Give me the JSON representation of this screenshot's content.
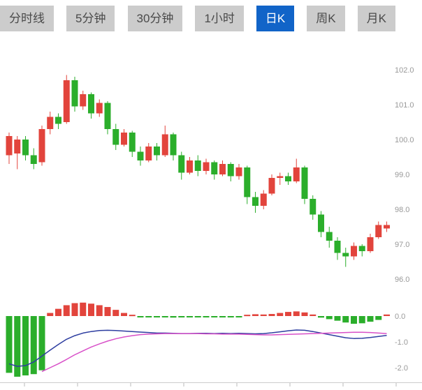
{
  "tabs": [
    {
      "label": "分时线",
      "active": false
    },
    {
      "label": "5分钟",
      "active": false
    },
    {
      "label": "30分钟",
      "active": false
    },
    {
      "label": "1小时",
      "active": false
    },
    {
      "label": "日K",
      "active": true
    },
    {
      "label": "周K",
      "active": false
    },
    {
      "label": "月K",
      "active": false
    }
  ],
  "colors": {
    "up": "#e2443c",
    "down": "#2bae2b",
    "dif_line": "#2d3da0",
    "dea_line": "#d850c8",
    "tab_active_bg": "#1164c8",
    "tab_bg": "#cccccc",
    "axis_text": "#999999",
    "axis_line": "#cccccc"
  },
  "chart_data": [
    {
      "type": "candlestick",
      "title": "日K",
      "y_axis": {
        "ticks": [
          102.0,
          101.0,
          100.0,
          99.0,
          98.0,
          97.0,
          96.0
        ],
        "ylim": [
          96.0,
          102.8
        ],
        "position": "right",
        "grid": false
      },
      "ohlc_order": "[open, high, low, close]",
      "candles": [
        [
          99.55,
          100.2,
          99.3,
          100.1
        ],
        [
          99.6,
          100.1,
          99.15,
          100.0
        ],
        [
          100.0,
          100.1,
          99.4,
          99.55
        ],
        [
          99.55,
          99.75,
          99.15,
          99.3
        ],
        [
          99.35,
          100.4,
          99.25,
          100.3
        ],
        [
          100.3,
          100.8,
          100.15,
          100.65
        ],
        [
          100.65,
          100.75,
          100.3,
          100.45
        ],
        [
          100.5,
          101.85,
          100.45,
          101.7
        ],
        [
          101.7,
          101.8,
          100.8,
          100.95
        ],
        [
          100.95,
          101.4,
          100.85,
          101.3
        ],
        [
          101.3,
          101.35,
          100.6,
          100.75
        ],
        [
          100.75,
          101.15,
          100.65,
          101.05
        ],
        [
          101.05,
          101.1,
          100.15,
          100.3
        ],
        [
          100.3,
          100.45,
          99.7,
          99.85
        ],
        [
          99.85,
          100.3,
          99.8,
          100.2
        ],
        [
          100.2,
          100.25,
          99.5,
          99.65
        ],
        [
          99.65,
          99.8,
          99.25,
          99.4
        ],
        [
          99.4,
          99.9,
          99.35,
          99.8
        ],
        [
          99.8,
          99.9,
          99.4,
          99.55
        ],
        [
          99.55,
          100.4,
          99.5,
          100.15
        ],
        [
          100.15,
          100.2,
          99.4,
          99.55
        ],
        [
          99.55,
          99.65,
          98.85,
          99.05
        ],
        [
          99.05,
          99.5,
          99.0,
          99.4
        ],
        [
          99.4,
          99.55,
          98.95,
          99.1
        ],
        [
          99.1,
          99.45,
          99.0,
          99.35
        ],
        [
          99.35,
          99.4,
          98.85,
          99.0
        ],
        [
          99.0,
          99.4,
          98.95,
          99.3
        ],
        [
          99.3,
          99.35,
          98.8,
          98.95
        ],
        [
          98.95,
          99.3,
          98.85,
          99.2
        ],
        [
          99.2,
          99.25,
          98.15,
          98.35
        ],
        [
          98.35,
          98.5,
          97.9,
          98.1
        ],
        [
          98.1,
          98.55,
          98.0,
          98.45
        ],
        [
          98.45,
          99.0,
          98.4,
          98.9
        ],
        [
          98.9,
          99.05,
          98.7,
          98.95
        ],
        [
          98.95,
          99.05,
          98.7,
          98.8
        ],
        [
          98.8,
          99.45,
          98.75,
          99.2
        ],
        [
          99.2,
          99.25,
          98.15,
          98.3
        ],
        [
          98.3,
          98.4,
          97.7,
          97.85
        ],
        [
          97.85,
          97.95,
          97.2,
          97.35
        ],
        [
          97.35,
          97.5,
          96.9,
          97.1
        ],
        [
          97.1,
          97.2,
          96.55,
          96.75
        ],
        [
          96.75,
          96.9,
          96.35,
          96.65
        ],
        [
          96.65,
          97.05,
          96.55,
          96.95
        ],
        [
          96.95,
          97.0,
          96.65,
          96.8
        ],
        [
          96.8,
          97.3,
          96.75,
          97.2
        ],
        [
          97.2,
          97.65,
          97.15,
          97.55
        ],
        [
          97.45,
          97.65,
          97.35,
          97.55
        ]
      ]
    },
    {
      "type": "bar",
      "subtype": "macd",
      "y_axis": {
        "ticks": [
          0.0,
          -1.0,
          -2.0
        ],
        "ylim": [
          -2.6,
          0.7
        ],
        "position": "right",
        "grid": false
      },
      "histogram": [
        -2.2,
        -2.35,
        -2.3,
        -2.25,
        -2.1,
        0.12,
        0.28,
        0.42,
        0.5,
        0.52,
        0.48,
        0.42,
        0.35,
        0.24,
        0.12,
        0.05,
        -0.03,
        -0.05,
        -0.04,
        -0.05,
        -0.06,
        -0.05,
        -0.04,
        -0.05,
        -0.04,
        -0.03,
        -0.05,
        -0.04,
        -0.05,
        0.05,
        0.07,
        0.06,
        0.08,
        0.12,
        0.16,
        0.18,
        0.14,
        0.06,
        -0.06,
        -0.12,
        -0.18,
        -0.25,
        -0.3,
        -0.28,
        -0.22,
        -0.15,
        0.06
      ],
      "series": [
        {
          "name": "DIF",
          "color_key": "dif_line",
          "values": [
            -1.85,
            -1.95,
            -1.92,
            -1.78,
            -1.55,
            -1.32,
            -1.1,
            -0.9,
            -0.76,
            -0.66,
            -0.6,
            -0.56,
            -0.55,
            -0.56,
            -0.58,
            -0.6,
            -0.62,
            -0.64,
            -0.66,
            -0.66,
            -0.67,
            -0.68,
            -0.68,
            -0.67,
            -0.67,
            -0.68,
            -0.67,
            -0.68,
            -0.67,
            -0.68,
            -0.69,
            -0.68,
            -0.65,
            -0.61,
            -0.57,
            -0.54,
            -0.55,
            -0.6,
            -0.66,
            -0.72,
            -0.78,
            -0.84,
            -0.87,
            -0.86,
            -0.83,
            -0.79,
            -0.75
          ]
        },
        {
          "name": "DEA",
          "color_key": "dea_line",
          "values": [
            null,
            null,
            null,
            null,
            -2.15,
            -2.0,
            -1.85,
            -1.68,
            -1.5,
            -1.35,
            -1.2,
            -1.08,
            -0.97,
            -0.88,
            -0.81,
            -0.76,
            -0.72,
            -0.7,
            -0.69,
            -0.68,
            -0.68,
            -0.68,
            -0.68,
            -0.68,
            -0.69,
            -0.69,
            -0.7,
            -0.7,
            -0.7,
            -0.71,
            -0.72,
            -0.73,
            -0.73,
            -0.72,
            -0.71,
            -0.7,
            -0.69,
            -0.68,
            -0.67,
            -0.66,
            -0.65,
            -0.64,
            -0.63,
            -0.63,
            -0.64,
            -0.66,
            -0.68
          ]
        }
      ]
    }
  ]
}
